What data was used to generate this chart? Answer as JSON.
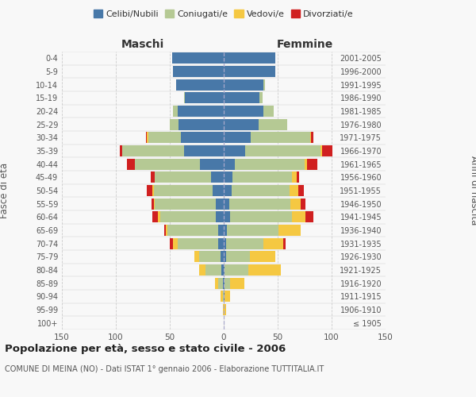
{
  "age_groups": [
    "100+",
    "95-99",
    "90-94",
    "85-89",
    "80-84",
    "75-79",
    "70-74",
    "65-69",
    "60-64",
    "55-59",
    "50-54",
    "45-49",
    "40-44",
    "35-39",
    "30-34",
    "25-29",
    "20-24",
    "15-19",
    "10-14",
    "5-9",
    "0-4"
  ],
  "birth_years": [
    "≤ 1905",
    "1906-1910",
    "1911-1915",
    "1916-1920",
    "1921-1925",
    "1926-1930",
    "1931-1935",
    "1936-1940",
    "1941-1945",
    "1946-1950",
    "1951-1955",
    "1956-1960",
    "1961-1965",
    "1966-1970",
    "1971-1975",
    "1976-1980",
    "1981-1985",
    "1986-1990",
    "1991-1995",
    "1996-2000",
    "2001-2005"
  ],
  "colors": {
    "celibi": "#4878A8",
    "coniugati": "#B5C994",
    "vedovi": "#F5C842",
    "divorziati": "#D02020"
  },
  "males": {
    "celibi": [
      0,
      0,
      0,
      1,
      2,
      3,
      5,
      5,
      7,
      7,
      10,
      12,
      22,
      37,
      40,
      42,
      43,
      36,
      44,
      47,
      48
    ],
    "coniugati": [
      0,
      0,
      1,
      4,
      15,
      20,
      38,
      47,
      52,
      57,
      55,
      52,
      60,
      57,
      30,
      8,
      4,
      1,
      0,
      0,
      0
    ],
    "vedovi": [
      0,
      1,
      2,
      3,
      6,
      4,
      4,
      2,
      2,
      1,
      1,
      0,
      0,
      0,
      1,
      0,
      0,
      0,
      0,
      0,
      0
    ],
    "divorziati": [
      0,
      0,
      0,
      0,
      0,
      0,
      3,
      1,
      5,
      2,
      5,
      4,
      8,
      2,
      1,
      0,
      0,
      0,
      0,
      0,
      0
    ]
  },
  "females": {
    "nubili": [
      0,
      0,
      1,
      1,
      1,
      2,
      2,
      3,
      6,
      5,
      7,
      8,
      10,
      20,
      25,
      32,
      37,
      33,
      37,
      48,
      48
    ],
    "coniugate": [
      0,
      0,
      0,
      5,
      22,
      22,
      35,
      48,
      57,
      57,
      54,
      55,
      65,
      70,
      55,
      27,
      9,
      3,
      1,
      0,
      0
    ],
    "vedove": [
      0,
      2,
      5,
      13,
      30,
      24,
      18,
      20,
      13,
      9,
      8,
      5,
      2,
      1,
      1,
      0,
      0,
      0,
      0,
      0,
      0
    ],
    "divorziate": [
      0,
      0,
      0,
      0,
      0,
      0,
      2,
      0,
      7,
      5,
      5,
      2,
      10,
      10,
      2,
      0,
      0,
      0,
      0,
      0,
      0
    ]
  },
  "xlim": 150,
  "title": "Popolazione per età, sesso e stato civile - 2006",
  "subtitle": "COMUNE DI MEINA (NO) - Dati ISTAT 1° gennaio 2006 - Elaborazione TUTTITALIA.IT",
  "ylabel_left": "Fasce di età",
  "ylabel_right": "Anni di nascita",
  "legend_labels": [
    "Celibi/Nubili",
    "Coniugati/e",
    "Vedovi/e",
    "Divorziati/e"
  ],
  "maschi_label": "Maschi",
  "femmine_label": "Femmine",
  "background_color": "#f8f8f8",
  "grid_color": "#cccccc"
}
